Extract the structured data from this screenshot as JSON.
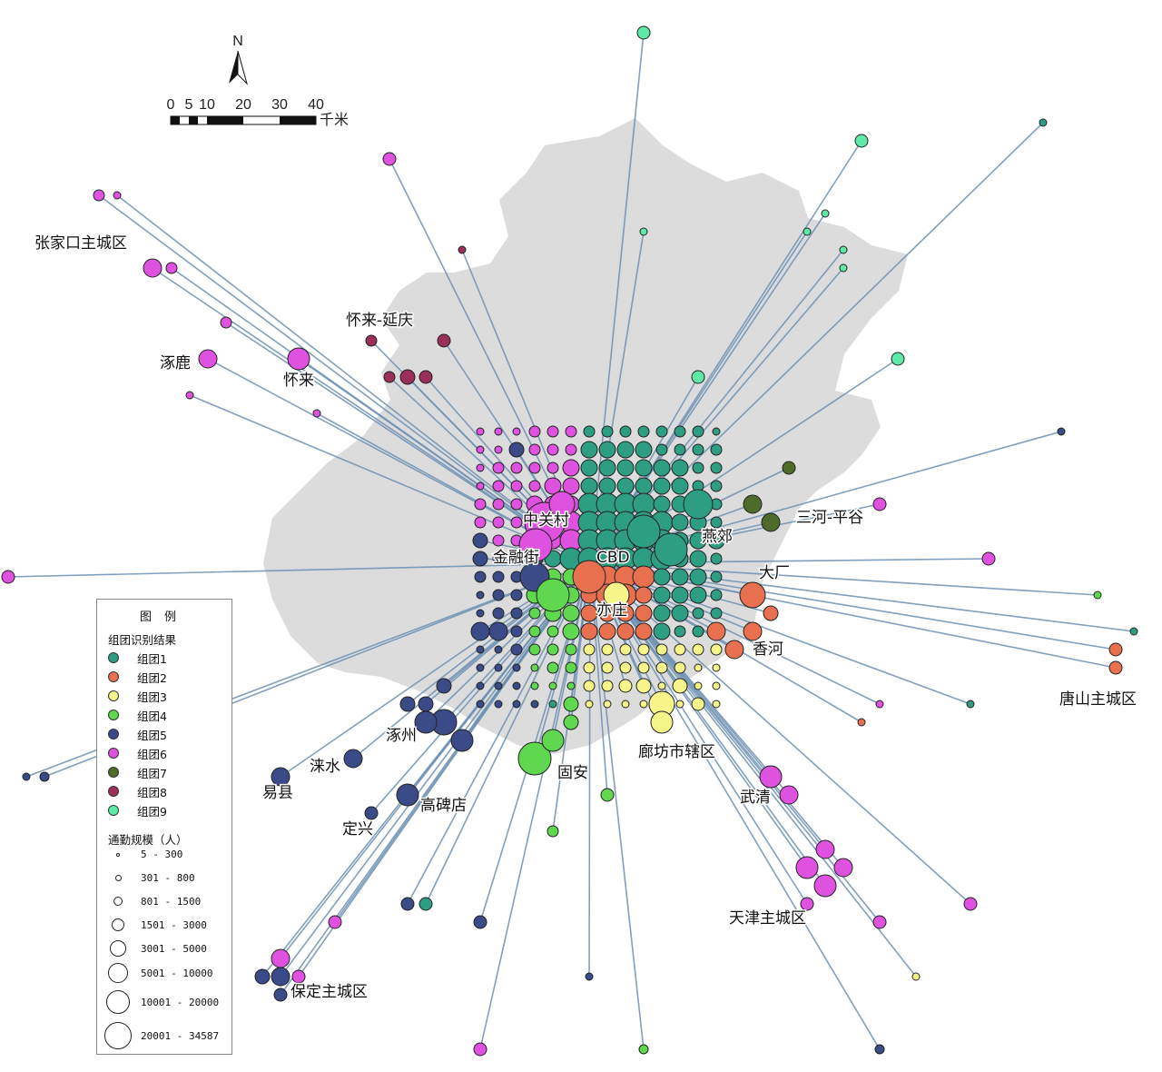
{
  "colors": {
    "cluster1": "#2e9e82",
    "cluster2": "#e8704f",
    "cluster3": "#f6f58a",
    "cluster4": "#5fd84f",
    "cluster5": "#3b4b87",
    "cluster6": "#df52e0",
    "cluster7": "#4f6b2a",
    "cluster8": "#9a2f59",
    "cluster9": "#5fe9a6",
    "flow_line": "#6c8fb2",
    "basemap": "#dcdcdc"
  },
  "north_arrow": {
    "label": "N"
  },
  "scale_bar": {
    "ticks": [
      "0",
      "5",
      "10",
      "20",
      "30",
      "40"
    ],
    "unit": "千米"
  },
  "place_labels": {
    "zhangjiakou": "张家口主城区",
    "huailai_yanqing": "怀来-延庆",
    "zhuolu": "涿鹿",
    "huailai": "怀来",
    "zhongguancun": "中关村",
    "jinrongjie": "金融街",
    "cbd": "CBD",
    "yanjiao": "燕郊",
    "sanhe_pinggu": "三河-平谷",
    "dachang": "大厂",
    "yizhuang": "亦庄",
    "xianghe": "香河",
    "tangshan": "唐山主城区",
    "langfang": "廊坊市辖区",
    "zhuozhou": "涿州",
    "laishui": "涞水",
    "yixian": "易县",
    "gaobeidian": "高碑店",
    "dingxing": "定兴",
    "guan": "固安",
    "wuqing": "武清",
    "tianjin": "天津主城区",
    "baoding": "保定主城区"
  },
  "legend": {
    "title": "图例",
    "cluster_heading": "组团识别结果",
    "clusters": [
      "组团1",
      "组团2",
      "组团3",
      "组团4",
      "组团5",
      "组团6",
      "组团7",
      "组团8",
      "组团9"
    ],
    "size_heading": "通勤规模（人）",
    "size_classes": [
      "5 - 300",
      "301 - 800",
      "801 - 1500",
      "1501 - 3000",
      "3001 - 5000",
      "5001 - 10000",
      "10001 - 20000",
      "20001 - 34587"
    ]
  }
}
